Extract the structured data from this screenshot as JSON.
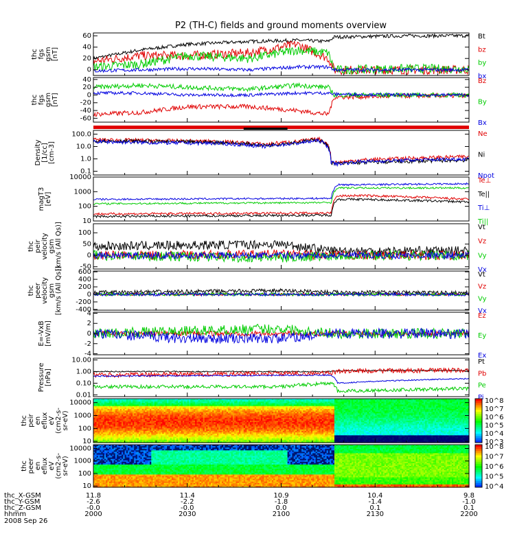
{
  "title": "P2 (TH-C) fields and ground moments overview",
  "colors": {
    "black": "#000000",
    "red": "#e00000",
    "green": "#00cc00",
    "blue": "#0000e0",
    "frame": "#000000"
  },
  "chart_data": [
    {
      "type": "line",
      "panel": "fgs-mag",
      "ylabel": [
        "thc",
        "fgs",
        "gsm",
        "[nT]"
      ],
      "ylim": [
        -10,
        65
      ],
      "yticks": [
        0,
        20,
        40,
        60
      ],
      "ytick_labels": [
        "0",
        "20",
        "40",
        "60"
      ],
      "legend": [
        {
          "label": "Bt",
          "color": "black"
        },
        {
          "label": "bz",
          "color": "red"
        },
        {
          "label": "by",
          "color": "green"
        },
        {
          "label": "bx",
          "color": "blue"
        }
      ],
      "series": [
        {
          "name": "Bt",
          "color": "black",
          "x": [
            0,
            15,
            30,
            50,
            65,
            75,
            77,
            80,
            100,
            120
          ],
          "y": [
            20,
            35,
            45,
            50,
            52,
            50,
            58,
            58,
            60,
            60
          ],
          "noise": 3
        },
        {
          "name": "bz",
          "color": "red",
          "x": [
            0,
            15,
            30,
            50,
            65,
            75,
            77,
            80,
            100,
            120
          ],
          "y": [
            15,
            25,
            25,
            30,
            45,
            20,
            0,
            0,
            0,
            0
          ],
          "noise": 8
        },
        {
          "name": "by",
          "color": "green",
          "x": [
            0,
            15,
            30,
            50,
            65,
            75,
            77,
            80,
            100,
            120
          ],
          "y": [
            5,
            10,
            25,
            20,
            35,
            30,
            0,
            0,
            2,
            2
          ],
          "noise": 8
        },
        {
          "name": "bx",
          "color": "blue",
          "x": [
            0,
            15,
            30,
            50,
            65,
            75,
            77,
            80,
            100,
            120
          ],
          "y": [
            -2,
            0,
            2,
            0,
            5,
            5,
            0,
            0,
            0,
            0
          ],
          "noise": 3
        }
      ]
    },
    {
      "type": "line",
      "panel": "fgs-gsm",
      "ylabel": [
        "thc",
        "fgs",
        "gsm",
        "[nT]"
      ],
      "ylim": [
        -70,
        45
      ],
      "yticks": [
        -60,
        -40,
        -20,
        0,
        20,
        40
      ],
      "ytick_labels": [
        "-60",
        "-40",
        "-20",
        "0",
        "20",
        "40"
      ],
      "legend": [
        {
          "label": "Bz",
          "color": "red"
        },
        {
          "label": "By",
          "color": "green"
        },
        {
          "label": "Bx",
          "color": "blue"
        }
      ],
      "series": [
        {
          "name": "Bz",
          "color": "red",
          "x": [
            0,
            15,
            30,
            50,
            65,
            75,
            77,
            80,
            100,
            120
          ],
          "y": [
            -50,
            -45,
            -30,
            -30,
            -40,
            -50,
            -5,
            -5,
            -2,
            -2
          ],
          "noise": 6
        },
        {
          "name": "By",
          "color": "green",
          "x": [
            0,
            15,
            30,
            50,
            65,
            75,
            77,
            80,
            100,
            120
          ],
          "y": [
            20,
            25,
            20,
            15,
            25,
            20,
            0,
            0,
            0,
            0
          ],
          "noise": 6
        },
        {
          "name": "Bx",
          "color": "blue",
          "x": [
            0,
            15,
            30,
            50,
            65,
            75,
            77,
            80,
            100,
            120
          ],
          "y": [
            5,
            5,
            0,
            0,
            5,
            5,
            2,
            2,
            0,
            0
          ],
          "noise": 4
        }
      ]
    },
    {
      "type": "line",
      "panel": "density",
      "log": true,
      "ylabel": [
        "Density",
        "[1/cc]",
        "[cm-3]"
      ],
      "ylim": [
        0.05,
        200
      ],
      "yticks": [
        0.1,
        1,
        10,
        100
      ],
      "ytick_labels": [
        "0.1",
        "1.0",
        "10.0",
        "100.0"
      ],
      "legend": [
        {
          "label": "Ne",
          "color": "red"
        },
        {
          "label": "Ni",
          "color": "black"
        },
        {
          "label": "Npot",
          "color": "blue"
        }
      ],
      "series": [
        {
          "name": "Ne",
          "color": "red",
          "x": [
            0,
            20,
            40,
            55,
            65,
            72,
            76,
            78,
            85,
            120
          ],
          "y": [
            35,
            30,
            25,
            15,
            25,
            40,
            0.6,
            0.5,
            0.8,
            1.5
          ],
          "noise": 0.15
        },
        {
          "name": "Ni",
          "color": "black",
          "x": [
            0,
            20,
            40,
            55,
            65,
            72,
            76,
            78,
            85,
            120
          ],
          "y": [
            30,
            25,
            22,
            12,
            22,
            35,
            0.5,
            0.4,
            0.5,
            0.8
          ],
          "noise": 0.15
        },
        {
          "name": "Npot",
          "color": "blue",
          "x": [
            0,
            20,
            40,
            55,
            65,
            72,
            76,
            78,
            85,
            120
          ],
          "y": [
            25,
            20,
            18,
            10,
            18,
            30,
            0.5,
            0.4,
            0.6,
            1.0
          ],
          "noise": 0.15
        }
      ]
    },
    {
      "type": "line",
      "panel": "temperature",
      "log": true,
      "ylabel": [
        "magT3",
        "[eV]"
      ],
      "ylim": [
        10,
        10000
      ],
      "yticks": [
        10,
        100,
        1000,
        10000
      ],
      "ytick_labels": [
        "10",
        "100",
        "1000",
        "10000"
      ],
      "legend": [
        {
          "label": "Te⊥",
          "color": "red"
        },
        {
          "label": "Te||",
          "color": "black"
        },
        {
          "label": "Ti⊥",
          "color": "blue"
        },
        {
          "label": "Ti||",
          "color": "green"
        }
      ],
      "series": [
        {
          "name": "Te⊥",
          "color": "red",
          "x": [
            0,
            76,
            78,
            85,
            120
          ],
          "y": [
            30,
            35,
            500,
            550,
            300
          ],
          "noise": 0.08
        },
        {
          "name": "Te||",
          "color": "black",
          "x": [
            0,
            76,
            78,
            85,
            120
          ],
          "y": [
            20,
            25,
            300,
            300,
            200
          ],
          "noise": 0.08
        },
        {
          "name": "Ti⊥",
          "color": "blue",
          "x": [
            0,
            76,
            78,
            85,
            120
          ],
          "y": [
            300,
            350,
            3000,
            3000,
            3500
          ],
          "noise": 0.06
        },
        {
          "name": "Ti||",
          "color": "green",
          "x": [
            0,
            76,
            78,
            85,
            120
          ],
          "y": [
            150,
            180,
            1800,
            1800,
            1800
          ],
          "noise": 0.06
        }
      ]
    },
    {
      "type": "line",
      "panel": "peir-velocity",
      "ylabel": [
        "thc",
        "peir",
        "velocity",
        "gsm",
        "[km/s (All Qs)]"
      ],
      "ylim": [
        -60,
        140
      ],
      "yticks": [
        -50,
        0,
        50,
        100
      ],
      "ytick_labels": [
        "-50",
        "0",
        "50",
        "100"
      ],
      "legend": [
        {
          "label": "Vt",
          "color": "black"
        },
        {
          "label": "Vz",
          "color": "red"
        },
        {
          "label": "Vy",
          "color": "green"
        },
        {
          "label": "Vx",
          "color": "blue"
        }
      ],
      "series": [
        {
          "name": "Vt",
          "color": "black",
          "x": [
            0,
            60,
            77,
            120
          ],
          "y": [
            40,
            50,
            20,
            20
          ],
          "noise": 20
        },
        {
          "name": "Vz",
          "color": "red",
          "x": [
            0,
            60,
            77,
            120
          ],
          "y": [
            0,
            5,
            0,
            0
          ],
          "noise": 20
        },
        {
          "name": "Vy",
          "color": "green",
          "x": [
            0,
            60,
            77,
            120
          ],
          "y": [
            0,
            -10,
            0,
            0
          ],
          "noise": 22
        },
        {
          "name": "Vx",
          "color": "blue",
          "x": [
            0,
            60,
            77,
            120
          ],
          "y": [
            0,
            0,
            0,
            0
          ],
          "noise": 15
        }
      ]
    },
    {
      "type": "line",
      "panel": "peer-velocity",
      "ylabel": [
        "thc",
        "peer",
        "velocity",
        "gsm",
        "[km/s (All Qs)]"
      ],
      "ylim": [
        -420,
        620
      ],
      "yticks": [
        -400,
        -200,
        0,
        200,
        400,
        600
      ],
      "ytick_labels": [
        "-400",
        "-200",
        "0",
        "200",
        "400",
        "600"
      ],
      "legend": [
        {
          "label": "Vt",
          "color": "black"
        },
        {
          "label": "Vz",
          "color": "red"
        },
        {
          "label": "Vy",
          "color": "green"
        },
        {
          "label": "Vx",
          "color": "blue"
        }
      ],
      "series": [
        {
          "name": "Vt",
          "color": "black",
          "x": [
            0,
            60,
            77,
            120
          ],
          "y": [
            50,
            100,
            60,
            40
          ],
          "noise": 50
        },
        {
          "name": "Vz",
          "color": "red",
          "x": [
            0,
            60,
            77,
            120
          ],
          "y": [
            0,
            0,
            0,
            0
          ],
          "noise": 30
        },
        {
          "name": "Vy",
          "color": "green",
          "x": [
            0,
            60,
            77,
            120
          ],
          "y": [
            0,
            0,
            0,
            0
          ],
          "noise": 40
        },
        {
          "name": "Vx",
          "color": "blue",
          "x": [
            0,
            60,
            77,
            120
          ],
          "y": [
            0,
            0,
            0,
            0
          ],
          "noise": 40
        }
      ]
    },
    {
      "type": "line",
      "panel": "e-field",
      "ylabel": [
        "E=-VxB",
        "[mV/m]"
      ],
      "ylim": [
        -4.2,
        4.2
      ],
      "yticks": [
        -4,
        -2,
        0,
        2,
        4
      ],
      "ytick_labels": [
        "-4",
        "-2",
        "0",
        "2",
        "4"
      ],
      "legend": [
        {
          "label": "Ez",
          "color": "red"
        },
        {
          "label": "Ey",
          "color": "green"
        },
        {
          "label": "Ex",
          "color": "blue"
        }
      ],
      "series": [
        {
          "name": "Ez",
          "color": "red",
          "x": [
            0,
            120
          ],
          "y": [
            0,
            0
          ],
          "noise": 0.5
        },
        {
          "name": "Ey",
          "color": "green",
          "x": [
            0,
            30,
            60,
            77,
            120
          ],
          "y": [
            0,
            0.5,
            1,
            0,
            0
          ],
          "noise": 1.0
        },
        {
          "name": "Ex",
          "color": "blue",
          "x": [
            0,
            30,
            60,
            77,
            120
          ],
          "y": [
            0,
            -1,
            -1,
            0,
            0
          ],
          "noise": 1.0
        }
      ]
    },
    {
      "type": "line",
      "panel": "pressure",
      "log": true,
      "ylabel": [
        "Pressure",
        "[nPa]"
      ],
      "ylim": [
        0.007,
        14
      ],
      "yticks": [
        0.01,
        0.1,
        1,
        10
      ],
      "ytick_labels": [
        "0.01",
        "0.10",
        "1.00",
        "10.00"
      ],
      "legend": [
        {
          "label": "Pt",
          "color": "black"
        },
        {
          "label": "Pb",
          "color": "red"
        },
        {
          "label": "Pe",
          "color": "green"
        },
        {
          "label": "Pi",
          "color": "blue"
        }
      ],
      "series": [
        {
          "name": "Pt",
          "color": "black",
          "x": [
            0,
            76,
            78,
            120
          ],
          "y": [
            1.0,
            1.0,
            1.2,
            1.3
          ],
          "noise": 0.05
        },
        {
          "name": "Pb",
          "color": "red",
          "x": [
            0,
            40,
            76,
            78,
            120
          ],
          "y": [
            0.5,
            0.6,
            0.7,
            1.1,
            1.3
          ],
          "noise": 0.2
        },
        {
          "name": "Pe",
          "color": "green",
          "x": [
            0,
            60,
            76,
            78,
            120
          ],
          "y": [
            0.05,
            0.05,
            0.1,
            0.02,
            0.035
          ],
          "noise": 0.15
        },
        {
          "name": "Pi",
          "color": "blue",
          "x": [
            0,
            76,
            78,
            120
          ],
          "y": [
            0.4,
            0.5,
            0.1,
            0.25
          ],
          "noise": 0.05
        }
      ]
    },
    {
      "type": "heatmap",
      "panel": "peir-spectrogram",
      "log": true,
      "ylabel": [
        "thc",
        "peir",
        "en",
        "eflux",
        "eV",
        "(cm2-s-",
        "sr-eV)"
      ],
      "ylim": [
        8,
        20000
      ],
      "yticks": [
        10,
        100,
        1000,
        10000
      ],
      "ytick_labels": [
        "10",
        "100",
        "1000",
        "10000"
      ],
      "colorbar": {
        "labels": [
          "10^8",
          "10^7",
          "10^6",
          "10^5",
          "10^4",
          "10^3"
        ]
      }
    },
    {
      "type": "heatmap",
      "panel": "peer-spectrogram",
      "log": true,
      "ylabel": [
        "thc",
        "peer",
        "en",
        "eflux",
        "eV",
        "(cm2-s-",
        "sr-eV)"
      ],
      "ylim": [
        8,
        20000
      ],
      "yticks": [
        10,
        100,
        1000,
        10000
      ],
      "ytick_labels": [
        "10",
        "100",
        "1000",
        "10000"
      ],
      "colorbar": {
        "labels": [
          "10^8",
          "10^7",
          "10^6",
          "10^5",
          "10^4"
        ]
      }
    }
  ],
  "x_axis": {
    "row_labels": [
      "thc_X-GSM",
      "thc_Y-GSM",
      "thc_Z-GSM",
      "hhmm",
      "2008 Sep 26"
    ],
    "ticks": [
      {
        "minutes": 0,
        "x": "11.8",
        "y": "-2.6",
        "z": "-0.0",
        "t": "2000"
      },
      {
        "minutes": 30,
        "x": "11.4",
        "y": "-2.2",
        "z": "-0.0",
        "t": "2030"
      },
      {
        "minutes": 60,
        "x": "10.9",
        "y": "-1.8",
        "z": "0.0",
        "t": "2100"
      },
      {
        "minutes": 90,
        "x": "10.4",
        "y": "-1.4",
        "z": "0.1",
        "t": "2130"
      },
      {
        "minutes": 120,
        "x": "9.8",
        "y": "-1.0",
        "z": "0.1",
        "t": "2200"
      }
    ]
  }
}
